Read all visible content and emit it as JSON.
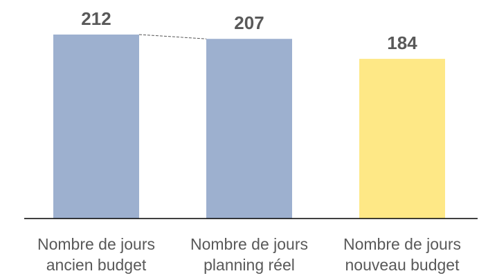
{
  "chart_data": {
    "type": "bar",
    "categories": [
      "Nombre de jours ancien budget",
      "Nombre de jours planning réel",
      "Nombre de jours nouveau budget"
    ],
    "values": [
      212,
      207,
      184
    ],
    "colors": [
      "#9db0cf",
      "#9db0cf",
      "#fee886"
    ]
  }
}
